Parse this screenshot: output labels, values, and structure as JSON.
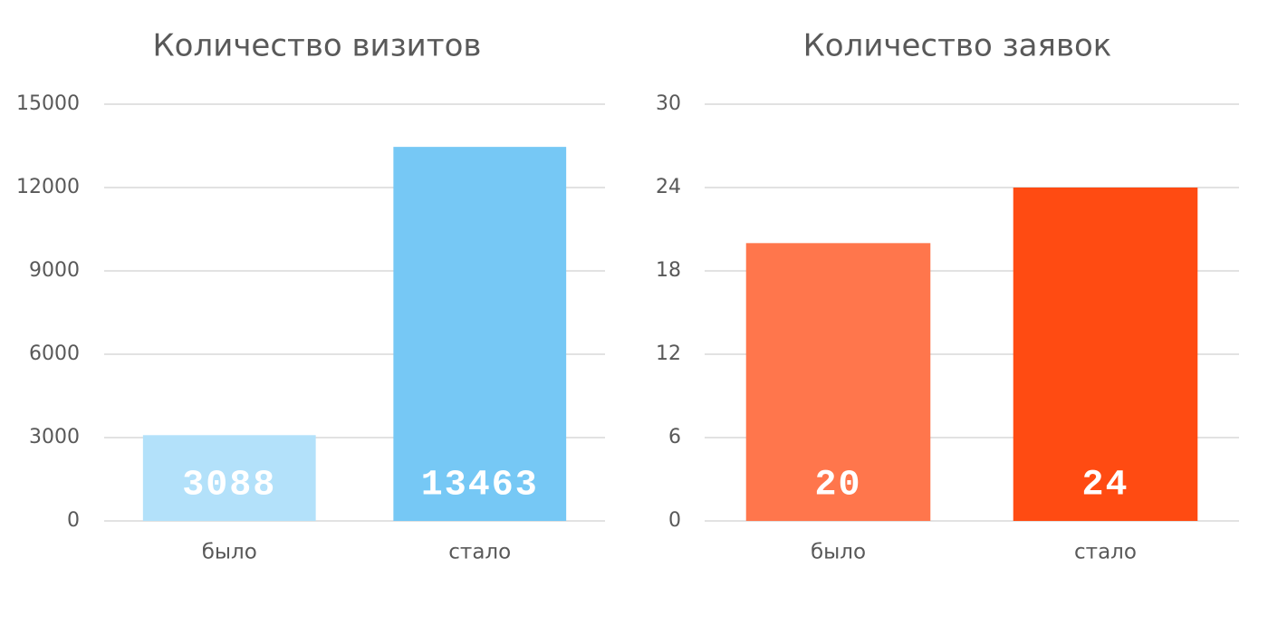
{
  "chart_data": [
    {
      "type": "bar",
      "title": "Количество визитов",
      "categories": [
        "было",
        "стало"
      ],
      "values": [
        3088,
        13463
      ],
      "colors": [
        "#b3e1fa",
        "#76c8f5"
      ],
      "ylim": [
        0,
        15000
      ],
      "yticks": [
        0,
        3000,
        6000,
        9000,
        12000,
        15000
      ],
      "grid": true,
      "data_labels": true
    },
    {
      "type": "bar",
      "title": "Количество заявок",
      "categories": [
        "было",
        "стало"
      ],
      "values": [
        20,
        24
      ],
      "colors": [
        "#ff764c",
        "#ff4b12"
      ],
      "ylim": [
        0,
        30
      ],
      "yticks": [
        0,
        6,
        12,
        18,
        24,
        30
      ],
      "grid": true,
      "data_labels": true
    }
  ]
}
